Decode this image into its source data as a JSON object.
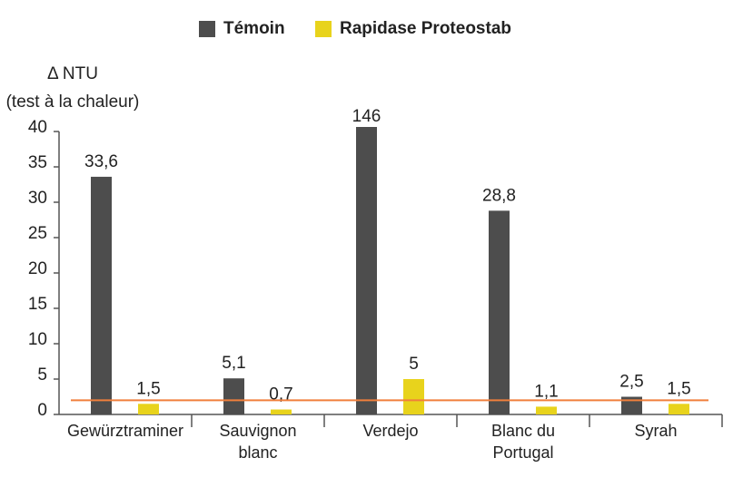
{
  "chart_data": {
    "type": "bar",
    "y_label": [
      "Δ NTU",
      "(test à la chaleur)"
    ],
    "categories": [
      "Gewürztraminer",
      "Sauvignon blanc",
      "Verdejo",
      "Blanc du Portugal",
      "Syrah"
    ],
    "series": [
      {
        "name": "Témoin",
        "color": "#4d4d4d",
        "values": [
          33.6,
          5.1,
          146,
          28.8,
          2.5
        ],
        "value_labels": [
          "33,6",
          "5,1",
          "146",
          "28,8",
          "2,5"
        ]
      },
      {
        "name": "Rapidase Proteostab",
        "color": "#e8d31c",
        "values": [
          1.5,
          0.7,
          5,
          1.1,
          1.5
        ],
        "value_labels": [
          "1,5",
          "0,7",
          "5",
          "1,1",
          "1,5"
        ]
      }
    ],
    "ylim": [
      0,
      40
    ],
    "yticks": [
      0,
      5,
      10,
      15,
      20,
      25,
      30,
      35,
      40
    ],
    "reference_line": {
      "value": 2,
      "color": "#f07f3c"
    }
  }
}
